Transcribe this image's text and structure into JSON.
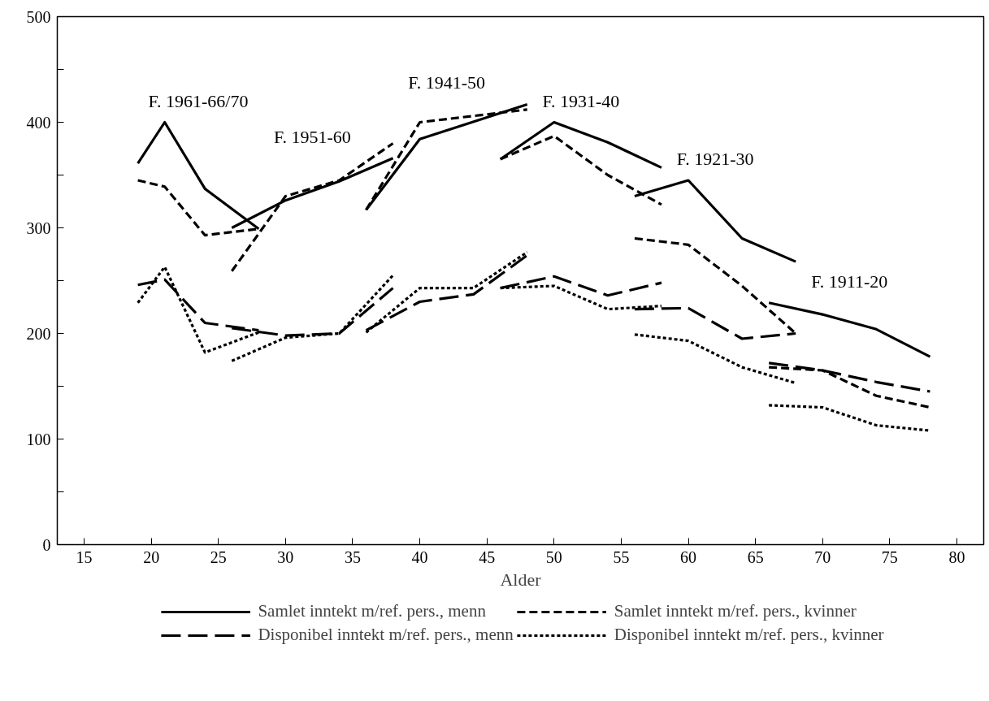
{
  "chart_data": {
    "type": "line",
    "xlabel": "Alder",
    "xlim": [
      13,
      82
    ],
    "ylim": [
      0,
      500
    ],
    "xticks": [
      15,
      20,
      25,
      30,
      35,
      40,
      45,
      50,
      55,
      60,
      65,
      70,
      75,
      80
    ],
    "yticks": [
      0,
      {
        "value": 50,
        "label": null
      },
      100,
      {
        "value": 150,
        "label": null
      },
      200,
      {
        "value": 250,
        "label": null
      },
      300,
      {
        "value": 350,
        "label": null
      },
      400,
      {
        "value": 450,
        "label": null
      },
      500
    ],
    "legend": "bottom",
    "series": [
      {
        "name": "Samlet inntekt m/ref. pers., menn",
        "color": "#000000",
        "line_style": "solid",
        "x": [
          19,
          21,
          24,
          28
        ],
        "values": [
          361,
          400,
          337,
          299
        ]
      },
      {
        "color": "#000000",
        "line_style": "solid",
        "x": [
          26,
          30,
          34,
          38
        ],
        "values": [
          300,
          326,
          344,
          366
        ]
      },
      {
        "color": "#000000",
        "line_style": "solid",
        "x": [
          36,
          40,
          48
        ],
        "values": [
          317,
          384,
          417
        ]
      },
      {
        "color": "#000000",
        "line_style": "solid",
        "x": [
          46,
          50,
          54,
          58
        ],
        "values": [
          365,
          400,
          381,
          357
        ]
      },
      {
        "color": "#000000",
        "line_style": "solid",
        "x": [
          56,
          60,
          64,
          68
        ],
        "values": [
          330,
          345,
          290,
          268
        ]
      },
      {
        "color": "#000000",
        "line_style": "solid",
        "x": [
          66,
          70,
          74,
          78
        ],
        "values": [
          229,
          218,
          204,
          178
        ]
      },
      {
        "name": "Disponibel inntekt m/ref. pers., menn",
        "color": "#000000",
        "line_style": "long_dashed",
        "x": [
          19,
          21,
          24,
          28
        ],
        "values": [
          246,
          251,
          210,
          203
        ]
      },
      {
        "color": "#000000",
        "line_style": "long_dashed",
        "x": [
          26,
          30,
          34,
          38
        ],
        "values": [
          205,
          198,
          200,
          243
        ]
      },
      {
        "color": "#000000",
        "line_style": "long_dashed",
        "x": [
          36,
          40,
          44,
          48
        ],
        "values": [
          203,
          230,
          237,
          274
        ]
      },
      {
        "color": "#000000",
        "line_style": "long_dashed",
        "x": [
          46,
          50,
          54,
          58
        ],
        "values": [
          243,
          254,
          236,
          248
        ]
      },
      {
        "color": "#000000",
        "line_style": "long_dashed",
        "x": [
          56,
          60,
          64,
          68
        ],
        "values": [
          223,
          224,
          195,
          200
        ]
      },
      {
        "color": "#000000",
        "line_style": "long_dashed",
        "x": [
          66,
          70,
          74,
          78
        ],
        "values": [
          172,
          165,
          154,
          145
        ]
      },
      {
        "name": "Samlet inntekt m/ref. pers., kvinner",
        "color": "#000000",
        "line_style": "dashed",
        "x": [
          19,
          21,
          24,
          28
        ],
        "values": [
          345,
          339,
          293,
          299
        ]
      },
      {
        "color": "#000000",
        "line_style": "dashed",
        "x": [
          26,
          30,
          34,
          38
        ],
        "values": [
          259,
          330,
          345,
          380
        ]
      },
      {
        "color": "#000000",
        "line_style": "dashed",
        "x": [
          36,
          40,
          48
        ],
        "values": [
          317,
          400,
          412
        ]
      },
      {
        "color": "#000000",
        "line_style": "dashed",
        "x": [
          46,
          50,
          54,
          58
        ],
        "values": [
          365,
          387,
          350,
          322
        ]
      },
      {
        "color": "#000000",
        "line_style": "dashed",
        "x": [
          56,
          60,
          64,
          68
        ],
        "values": [
          290,
          284,
          245,
          200
        ]
      },
      {
        "color": "#000000",
        "line_style": "dashed",
        "x": [
          66,
          70,
          74,
          78
        ],
        "values": [
          168,
          165,
          141,
          130
        ]
      },
      {
        "name": "Disponibel inntekt m/ref. pers., kvinner",
        "color": "#000000",
        "line_style": "dotted",
        "x": [
          19,
          21,
          24,
          28
        ],
        "values": [
          229,
          263,
          182,
          201
        ]
      },
      {
        "color": "#000000",
        "line_style": "dotted",
        "x": [
          26,
          30,
          34,
          38
        ],
        "values": [
          174,
          196,
          200,
          255
        ]
      },
      {
        "color": "#000000",
        "line_style": "dotted",
        "x": [
          36,
          40,
          44,
          48
        ],
        "values": [
          201,
          243,
          243,
          277
        ]
      },
      {
        "color": "#000000",
        "line_style": "dotted",
        "x": [
          46,
          50,
          54,
          58
        ],
        "values": [
          243,
          245,
          223,
          226
        ]
      },
      {
        "color": "#000000",
        "line_style": "dotted",
        "x": [
          56,
          60,
          64,
          68
        ],
        "values": [
          199,
          193,
          168,
          153
        ]
      },
      {
        "color": "#000000",
        "line_style": "dotted",
        "x": [
          66,
          70,
          74,
          78
        ],
        "values": [
          132,
          130,
          113,
          108
        ]
      }
    ],
    "annotations": [
      "F. 1961-66/70",
      "F. 1951-60",
      "F. 1941-50",
      "F. 1931-40",
      "F. 1921-30",
      "F. 1911-20"
    ]
  }
}
